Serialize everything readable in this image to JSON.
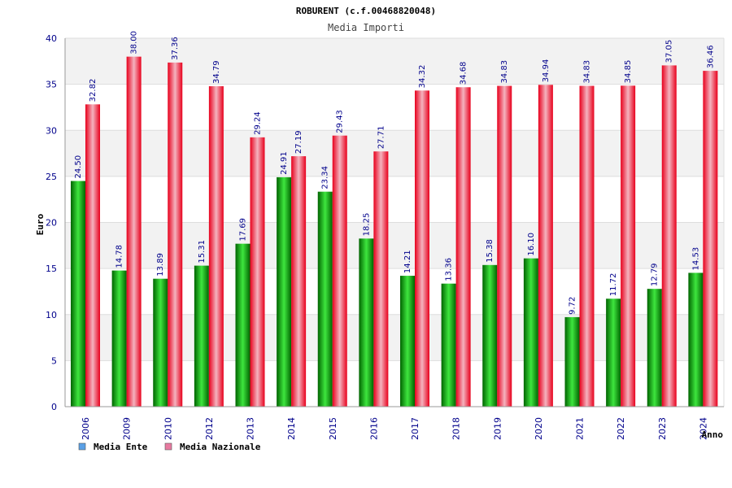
{
  "chart_data": {
    "type": "bar",
    "title": "ROBURENT (c.f.00468820048)",
    "subtitle": "Media Importi",
    "xlabel": "Anno",
    "ylabel": "Euro",
    "ylim": [
      0,
      40
    ],
    "yticks": [
      0,
      5,
      10,
      15,
      20,
      25,
      30,
      35,
      40
    ],
    "grid": true,
    "legend_position": "bottom-left",
    "categories": [
      "2006",
      "2009",
      "2010",
      "2012",
      "2013",
      "2014",
      "2015",
      "2016",
      "2017",
      "2018",
      "2019",
      "2020",
      "2021",
      "2022",
      "2023",
      "2024"
    ],
    "series": [
      {
        "name": "Media Ente",
        "color": "#00a000",
        "legend_color": "#5aa0e6",
        "values": [
          24.5,
          14.78,
          13.89,
          15.31,
          17.69,
          24.91,
          23.34,
          18.25,
          14.21,
          13.36,
          15.38,
          16.1,
          9.72,
          11.72,
          12.79,
          14.53
        ],
        "labels": [
          "24.50",
          "14.78",
          "13.89",
          "15.31",
          "17.69",
          "24.91",
          "23.34",
          "18.25",
          "14.21",
          "13.36",
          "15.38",
          "16.10",
          "9.72",
          "11.72",
          "12.79",
          "14.53"
        ]
      },
      {
        "name": "Media Nazionale",
        "color": "#e8001c",
        "legend_color": "#e87aa0",
        "values": [
          32.82,
          38.0,
          37.36,
          34.79,
          29.24,
          27.19,
          29.43,
          27.71,
          34.32,
          34.68,
          34.83,
          34.94,
          34.83,
          34.85,
          37.05,
          36.46
        ],
        "labels": [
          "32.82",
          "38.00",
          "37.36",
          "34.79",
          "29.24",
          "27.19",
          "29.43",
          "27.71",
          "34.32",
          "34.68",
          "34.83",
          "34.94",
          "34.83",
          "34.85",
          "37.05",
          "36.46"
        ]
      }
    ]
  }
}
